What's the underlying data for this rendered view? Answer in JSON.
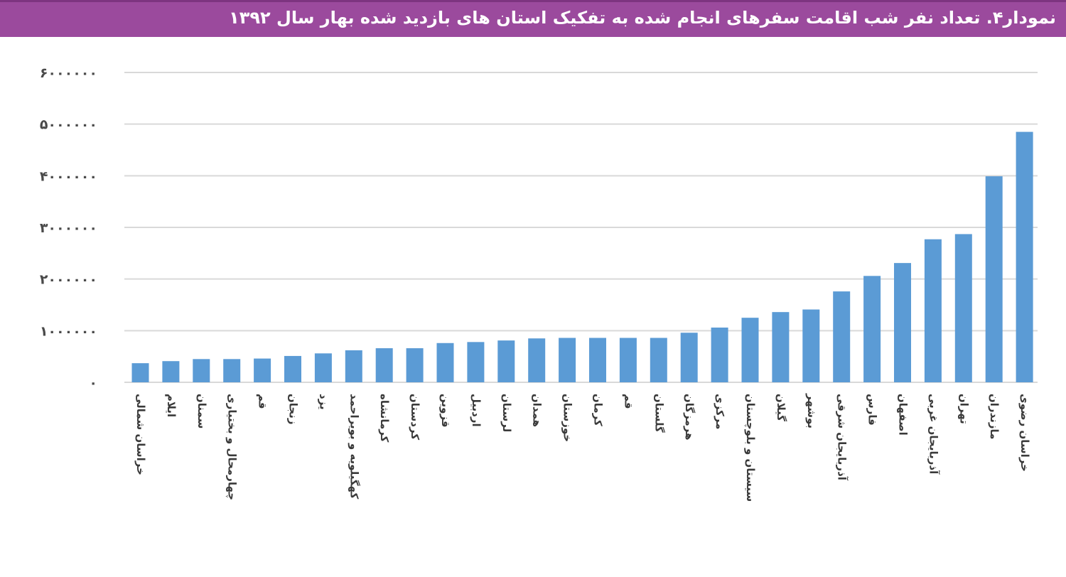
{
  "chart_data": {
    "type": "bar",
    "title": "نمودار۴. تعداد نفر شب اقامت سفرهای انجام شده به تفکیک استان های بازدید شده بهار سال ۱۳۹۲",
    "xlabel": "",
    "ylabel": "",
    "ylim": [
      0,
      6000000
    ],
    "yticks": [
      0,
      1000000,
      2000000,
      3000000,
      4000000,
      5000000,
      6000000
    ],
    "ytick_labels": [
      "۰",
      "۱۰۰۰۰۰۰",
      "۲۰۰۰۰۰۰",
      "۳۰۰۰۰۰۰",
      "۴۰۰۰۰۰۰",
      "۵۰۰۰۰۰۰",
      "۶۰۰۰۰۰۰"
    ],
    "grid": true,
    "bar_color": "#5b9bd5",
    "categories": [
      "خراسان شمالی",
      "ایلام",
      "سمنان",
      "چهارمحال و بختیاری",
      "قم",
      "زنجان",
      "یزد",
      "کهگیلویه و بویراحمد",
      "کرمانشاه",
      "کردستان",
      "قزوین",
      "اردبیل",
      "لرستان",
      "همدان",
      "خوزستان",
      "کرمان",
      "قم",
      "گلستان",
      "هرمزگان",
      "مرکزی",
      "سیستان و بلوچستان",
      "گیلان",
      "بوشهر",
      "آذربایجان شرقی",
      "فارس",
      "اصفهان",
      "آذربایجان غربی",
      "تهران",
      "مازندران",
      "خراسان رضوی"
    ],
    "values": [
      370000,
      410000,
      450000,
      450000,
      460000,
      510000,
      560000,
      620000,
      660000,
      660000,
      760000,
      780000,
      810000,
      850000,
      860000,
      860000,
      860000,
      860000,
      960000,
      1060000,
      1250000,
      1360000,
      1410000,
      1760000,
      2060000,
      2310000,
      2770000,
      2870000,
      3990000,
      4850000
    ]
  }
}
